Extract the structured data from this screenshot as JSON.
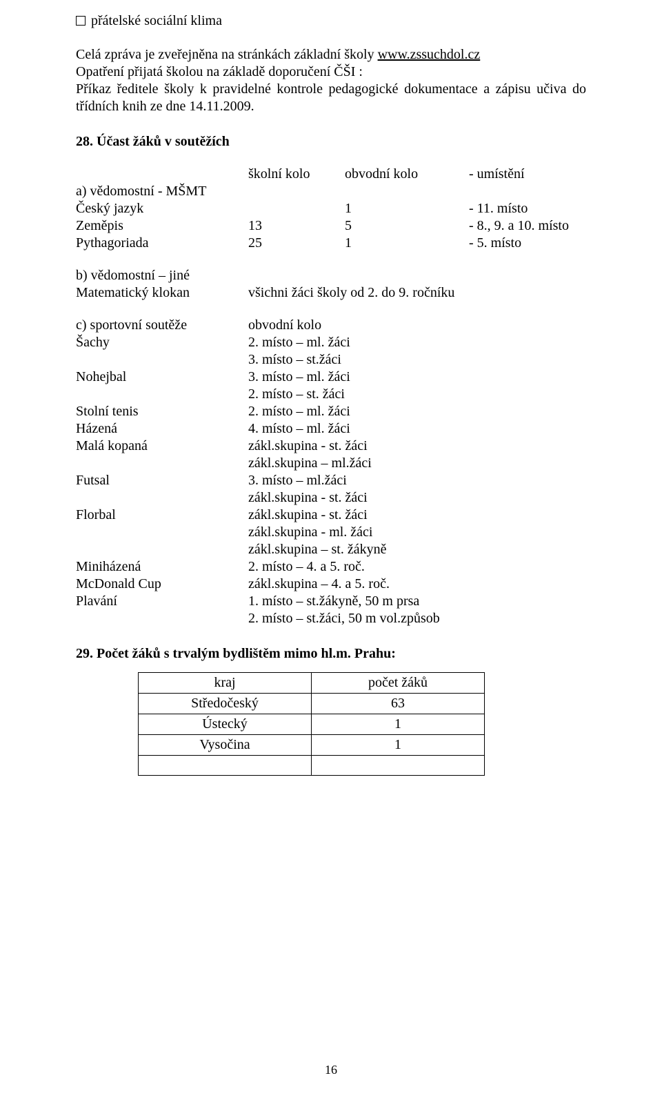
{
  "bullet": {
    "text": "přátelské sociální klima"
  },
  "intro": {
    "p1_a": "Celá zpráva je zveřejněna na stránkách základní školy ",
    "p1_link": "www.zssuchdol.cz",
    "p2": "Opatření přijatá školou na základě doporučení ČŠI :",
    "p3": "Příkaz ředitele školy k pravidelné kontrole pedagogické dokumentace a zápisu učiva do třídních knih ze dne 14.11.2009."
  },
  "s28": {
    "heading": "28. Účast žáků v soutěžích",
    "header": {
      "col_b": "školní kolo",
      "col_c": "obvodní kolo",
      "col_d": "- umístění"
    },
    "a_label": "a) vědomostní - MŠMT",
    "a_rows": [
      {
        "name": "Český jazyk",
        "sk": "",
        "ok": "1",
        "um": "- 11. místo"
      },
      {
        "name": "Zeměpis",
        "sk": "13",
        "ok": "5",
        "um": "- 8., 9. a 10. místo"
      },
      {
        "name": "Pythagoriada",
        "sk": "25",
        "ok": "1",
        "um": "- 5. místo"
      }
    ],
    "b_label": "b) vědomostní – jiné",
    "b_rows": [
      {
        "name": "Matematický klokan",
        "val": "všichni žáci školy od 2. do 9. ročníku"
      }
    ],
    "c_label": "c) sportovní soutěže",
    "c_label_right": "obvodní kolo",
    "c_rows": [
      {
        "name": "Šachy",
        "vals": [
          "2. místo – ml. žáci",
          "3. místo – st.žáci"
        ]
      },
      {
        "name": "Nohejbal",
        "vals": [
          "3. místo – ml. žáci",
          "2. místo – st. žáci"
        ]
      },
      {
        "name": "Stolní tenis",
        "vals": [
          "2. místo – ml. žáci"
        ]
      },
      {
        "name": "Házená",
        "vals": [
          "4. místo – ml. žáci"
        ]
      },
      {
        "name": "Malá kopaná",
        "vals": [
          "zákl.skupina - st. žáci",
          "zákl.skupina – ml.žáci"
        ]
      },
      {
        "name": "Futsal",
        "vals": [
          "3. místo – ml.žáci",
          "zákl.skupina - st. žáci"
        ]
      },
      {
        "name": "Florbal",
        "vals": [
          "zákl.skupina - st. žáci",
          "zákl.skupina - ml. žáci",
          "zákl.skupina – st. žákyně"
        ]
      },
      {
        "name": "Miniházená",
        "vals": [
          "2. místo – 4. a 5. roč."
        ]
      },
      {
        "name": "McDonald Cup",
        "vals": [
          "zákl.skupina – 4. a 5. roč."
        ]
      },
      {
        "name": "Plavání",
        "vals": [
          "1. místo – st.žákyně, 50 m prsa",
          "2. místo – st.žáci, 50 m vol.způsob"
        ]
      }
    ]
  },
  "s29": {
    "heading": "29. Počet žáků s trvalým bydlištěm mimo hl.m. Prahu:",
    "header": {
      "c1": "kraj",
      "c2": "počet žáků"
    },
    "rows": [
      {
        "c1": "Středočeský",
        "c2": "63"
      },
      {
        "c1": "Ústecký",
        "c2": "1"
      },
      {
        "c1": "Vysočina",
        "c2": "1"
      },
      {
        "c1": "",
        "c2": ""
      }
    ]
  },
  "page_number": "16"
}
